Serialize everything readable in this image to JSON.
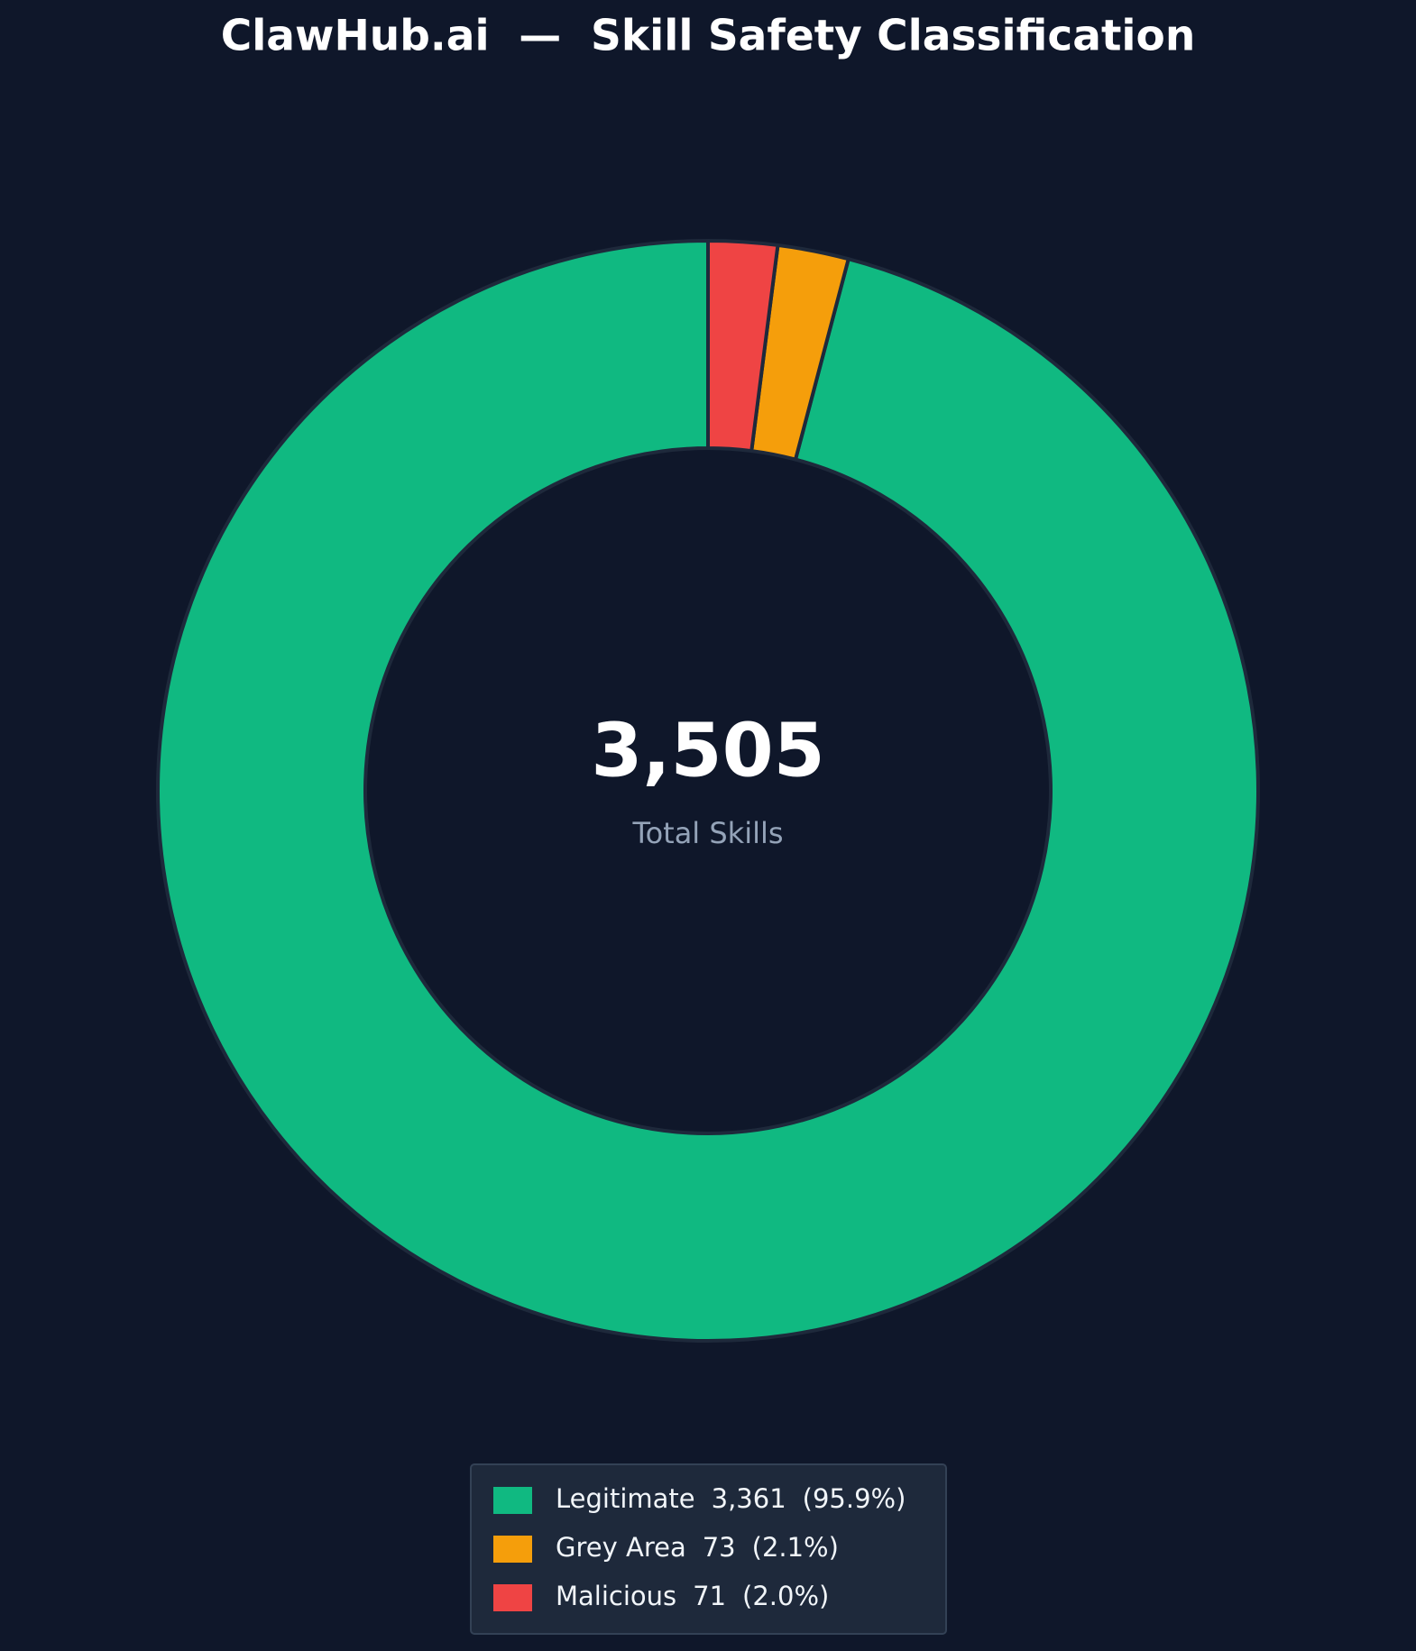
{
  "chart_data": {
    "type": "pie",
    "title": "ClawHub.ai  —  Skill Safety Classification",
    "categories": [
      "Legitimate",
      "Grey Area",
      "Malicious"
    ],
    "values": [
      3361,
      73,
      71
    ],
    "value_labels": [
      "3,361",
      "73",
      "71"
    ],
    "percentage_labels": [
      "(95.9%)",
      "(2.1%)",
      "(2.0%)"
    ],
    "colors": [
      "#10b981",
      "#f59e0b",
      "#ef4444"
    ],
    "total_label": "3,505",
    "total_caption": "Total Skills",
    "legend": "lower center"
  }
}
